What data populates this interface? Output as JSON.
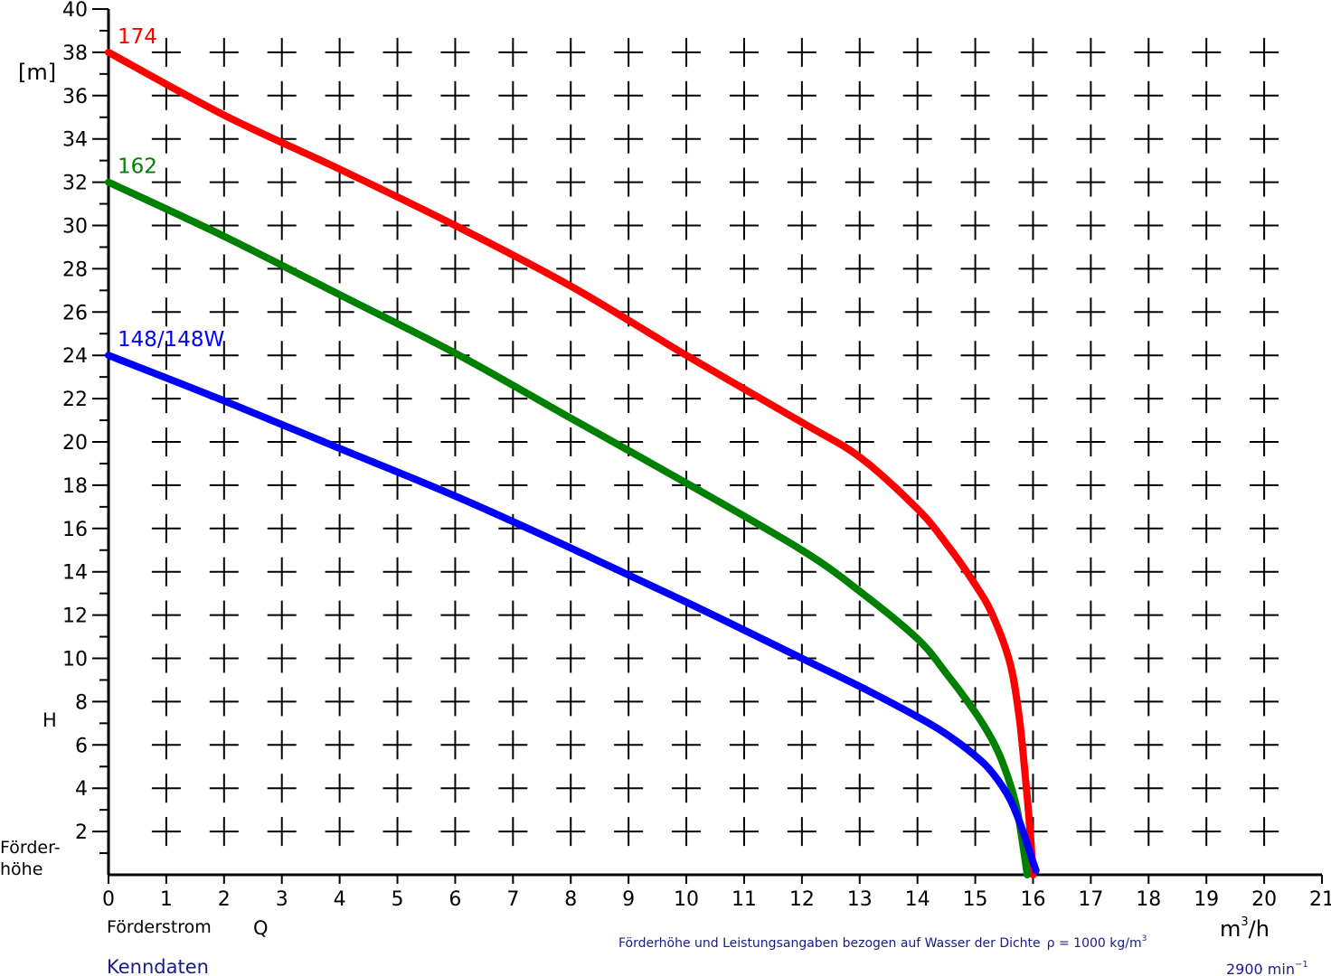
{
  "chart_data": {
    "type": "line",
    "y_unit": "[m]",
    "y_symbol": "H",
    "y_label_line1": "Förder-",
    "y_label_line2": "höhe",
    "x_label": "Förderstrom",
    "x_symbol": "Q",
    "x_unit_base": "m",
    "x_unit_exp": "3",
    "x_unit_rest": "/h",
    "xlim": [
      0,
      21
    ],
    "ylim": [
      0,
      40
    ],
    "x_ticks": [
      0,
      1,
      2,
      3,
      4,
      5,
      6,
      7,
      8,
      9,
      10,
      11,
      12,
      13,
      14,
      15,
      16,
      17,
      18,
      19,
      20,
      21
    ],
    "y_ticks": [
      2,
      4,
      6,
      8,
      10,
      12,
      14,
      16,
      18,
      20,
      22,
      24,
      26,
      28,
      30,
      32,
      34,
      36,
      38,
      40
    ],
    "grid": "crosses",
    "series": [
      {
        "name": "174",
        "color": "#ff0000",
        "x": [
          0,
          2,
          4,
          6,
          8,
          10,
          12,
          13,
          14,
          14.5,
          15,
          15.3,
          15.6,
          15.75,
          15.85,
          15.95,
          16.0
        ],
        "y": [
          38,
          35.1,
          32.6,
          30.0,
          27.2,
          24.0,
          20.9,
          19.3,
          16.9,
          15.3,
          13.4,
          12.0,
          9.8,
          7.5,
          5.0,
          2.0,
          0
        ]
      },
      {
        "name": "162",
        "color": "#008000",
        "x": [
          0,
          2,
          4,
          6,
          8,
          10,
          12,
          13,
          14,
          14.5,
          15,
          15.3,
          15.5,
          15.7,
          15.8,
          15.9
        ],
        "y": [
          32,
          29.5,
          26.8,
          24.1,
          21.1,
          18.1,
          15.0,
          13.1,
          10.9,
          9.3,
          7.5,
          6.2,
          5.0,
          3.3,
          1.8,
          0
        ]
      },
      {
        "name": "148/148W",
        "color": "#0000ff",
        "x": [
          0,
          2,
          4,
          6,
          8,
          10,
          12,
          13,
          14,
          14.5,
          15,
          15.3,
          15.6,
          15.8,
          15.95,
          16.05
        ],
        "y": [
          24,
          21.9,
          19.7,
          17.5,
          15.1,
          12.6,
          10.0,
          8.7,
          7.3,
          6.5,
          5.5,
          4.7,
          3.5,
          2.2,
          1.0,
          0.2
        ]
      }
    ]
  },
  "note": {
    "text": "Förderhöhe und Leistungsangaben bezogen auf Wasser der Dichte",
    "rho": "ρ = 1000 kg/m",
    "rho_exp": "3"
  },
  "footer": {
    "left": "Kenndaten",
    "speed": "2900 min",
    "speed_exp": "−1"
  }
}
